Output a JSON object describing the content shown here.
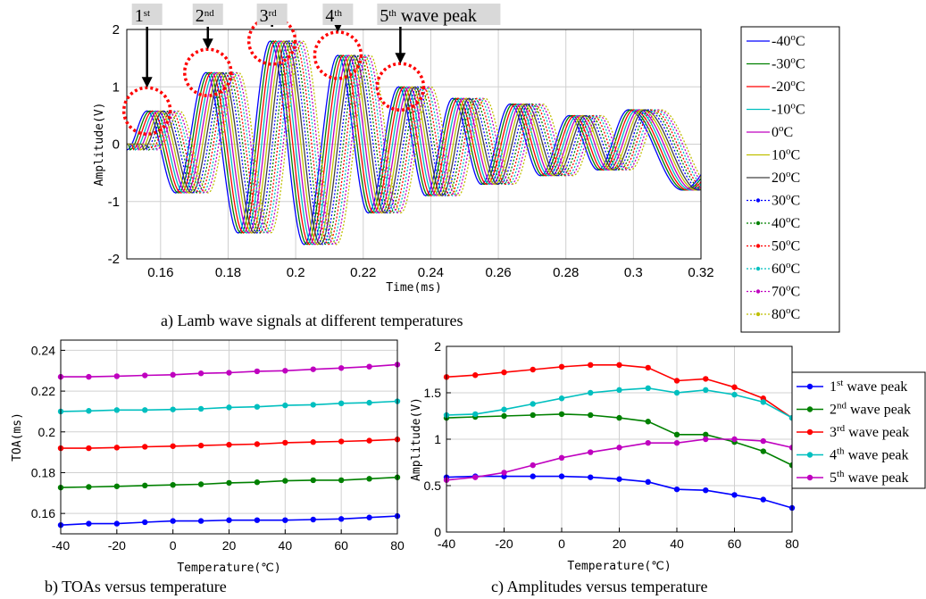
{
  "chart_data": [
    {
      "id": "a",
      "type": "line",
      "caption": "a) Lamb wave signals at different temperatures",
      "xlabel": "Time(ms)",
      "ylabel": "Amplitude(V)",
      "xlim": [
        0.15,
        0.32
      ],
      "ylim": [
        -2,
        2
      ],
      "xticks": [
        "0.16",
        "0.18",
        "0.2",
        "0.22",
        "0.24",
        "0.26",
        "0.28",
        "0.3",
        "0.32"
      ],
      "yticks": [
        "-2",
        "-1",
        "0",
        "1",
        "2"
      ],
      "grid": true,
      "legend_position": "right",
      "series": [
        {
          "name": "-40",
          "color": "#0000ff",
          "dash": false
        },
        {
          "name": "-30",
          "color": "#008000",
          "dash": false
        },
        {
          "name": "-20",
          "color": "#ff0000",
          "dash": false
        },
        {
          "name": "-10",
          "color": "#00bfbf",
          "dash": false
        },
        {
          "name": "0",
          "color": "#bf00bf",
          "dash": false
        },
        {
          "name": "10",
          "color": "#bfbf00",
          "dash": false
        },
        {
          "name": "20",
          "color": "#404040",
          "dash": false
        },
        {
          "name": "30",
          "color": "#0000ff",
          "dash": true
        },
        {
          "name": "40",
          "color": "#008000",
          "dash": true
        },
        {
          "name": "50",
          "color": "#ff0000",
          "dash": true
        },
        {
          "name": "60",
          "color": "#00bfbf",
          "dash": true
        },
        {
          "name": "70",
          "color": "#bf00bf",
          "dash": true
        },
        {
          "name": "80",
          "color": "#bfbf00",
          "dash": true
        }
      ],
      "legend_unit_sup": "o",
      "legend_unit_suffix": "C",
      "envelope": {
        "peak_times": [
          0.156,
          0.1735,
          0.1925,
          0.2125,
          0.2305,
          0.2465,
          0.2635,
          0.281,
          0.2985
        ],
        "peak_values": [
          0.58,
          1.25,
          1.8,
          1.55,
          1.0,
          0.8,
          0.7,
          0.5,
          0.6
        ],
        "trough_times": [
          0.1645,
          0.183,
          0.2025,
          0.2215,
          0.2385,
          0.255,
          0.2725,
          0.2895,
          0.3145
        ],
        "trough_values": [
          -0.85,
          -1.55,
          -1.75,
          -1.2,
          -0.9,
          -0.7,
          -0.55,
          -0.45,
          -0.8
        ],
        "time_shift_per_10C": 0.0008
      },
      "peak_annotations": [
        {
          "label": "1",
          "sup": "st",
          "suffix": "",
          "x": 0.156,
          "y": 0.58
        },
        {
          "label": "2",
          "sup": "nd",
          "suffix": "",
          "x": 0.174,
          "y": 1.25
        },
        {
          "label": "3",
          "sup": "rd",
          "suffix": "",
          "x": 0.193,
          "y": 1.8
        },
        {
          "label": "4",
          "sup": "th",
          "suffix": "",
          "x": 0.2125,
          "y": 1.55
        },
        {
          "label": "5",
          "sup": "th",
          "suffix": " wave peak",
          "x": 0.231,
          "y": 1.0
        }
      ]
    },
    {
      "id": "b",
      "type": "line",
      "caption": "b) TOAs versus temperature",
      "xlabel": "Temperature(℃)",
      "ylabel": "TOA(ms)",
      "xlim": [
        -40,
        80
      ],
      "ylim": [
        0.15,
        0.245
      ],
      "xticks": [
        -40,
        -20,
        0,
        20,
        40,
        60,
        80
      ],
      "yticks": [
        0.16,
        0.18,
        0.2,
        0.22,
        0.24
      ],
      "ytick_labels": [
        "0.16",
        "0.18",
        "0.2",
        "0.22",
        "0.24"
      ],
      "x": [
        -40,
        -30,
        -20,
        -10,
        0,
        10,
        20,
        30,
        40,
        50,
        60,
        70,
        80
      ],
      "series": [
        {
          "name": "1st wave peak",
          "color": "#0000ff",
          "values": [
            0.1543,
            0.155,
            0.155,
            0.1557,
            0.1563,
            0.1563,
            0.1567,
            0.1567,
            0.1567,
            0.157,
            0.1573,
            0.158,
            0.1587
          ]
        },
        {
          "name": "2nd wave peak",
          "color": "#008000",
          "values": [
            0.1727,
            0.173,
            0.1733,
            0.1737,
            0.174,
            0.1743,
            0.175,
            0.1753,
            0.176,
            0.1763,
            0.1763,
            0.177,
            0.1777
          ]
        },
        {
          "name": "3rd wave peak",
          "color": "#ff0000",
          "values": [
            0.192,
            0.192,
            0.1923,
            0.1927,
            0.193,
            0.1933,
            0.1937,
            0.194,
            0.1947,
            0.195,
            0.1953,
            0.1957,
            0.1963
          ]
        },
        {
          "name": "4th wave peak",
          "color": "#00bfbf",
          "values": [
            0.21,
            0.2103,
            0.2107,
            0.2107,
            0.211,
            0.2113,
            0.212,
            0.2123,
            0.213,
            0.2133,
            0.214,
            0.2143,
            0.215
          ]
        },
        {
          "name": "5th wave peak",
          "color": "#bf00bf",
          "values": [
            0.227,
            0.227,
            0.2273,
            0.2277,
            0.228,
            0.2287,
            0.229,
            0.2297,
            0.23,
            0.2307,
            0.2313,
            0.232,
            0.233
          ]
        }
      ]
    },
    {
      "id": "c",
      "type": "line",
      "caption": "c) Amplitudes versus temperature",
      "xlabel": "Temperature(℃)",
      "ylabel": "Amplitude(V)",
      "xlim": [
        -40,
        80
      ],
      "ylim": [
        0,
        2
      ],
      "xticks": [
        -40,
        -20,
        0,
        20,
        40,
        60,
        80
      ],
      "yticks": [
        0,
        0.5,
        1,
        1.5,
        2
      ],
      "ytick_labels": [
        "0",
        "0.5",
        "1",
        "1.5",
        "2"
      ],
      "legend_position": "right",
      "x": [
        -40,
        -30,
        -20,
        -10,
        0,
        10,
        20,
        30,
        40,
        50,
        60,
        70,
        80
      ],
      "series": [
        {
          "name": "1st wave peak",
          "ord": "1",
          "sup": "st",
          "color": "#0000ff",
          "values": [
            0.59,
            0.6,
            0.6,
            0.6,
            0.6,
            0.59,
            0.57,
            0.54,
            0.46,
            0.45,
            0.4,
            0.35,
            0.26
          ]
        },
        {
          "name": "2nd wave peak",
          "ord": "2",
          "sup": "nd",
          "color": "#008000",
          "values": [
            1.23,
            1.24,
            1.25,
            1.26,
            1.27,
            1.26,
            1.23,
            1.19,
            1.05,
            1.05,
            0.97,
            0.87,
            0.72
          ]
        },
        {
          "name": "3rd wave peak",
          "ord": "3",
          "sup": "rd",
          "color": "#ff0000",
          "values": [
            1.67,
            1.69,
            1.72,
            1.75,
            1.78,
            1.8,
            1.8,
            1.77,
            1.63,
            1.65,
            1.56,
            1.44,
            1.23
          ]
        },
        {
          "name": "4th wave peak",
          "ord": "4",
          "sup": "th",
          "color": "#00bfbf",
          "values": [
            1.26,
            1.27,
            1.32,
            1.38,
            1.44,
            1.5,
            1.53,
            1.55,
            1.5,
            1.53,
            1.48,
            1.4,
            1.23
          ]
        },
        {
          "name": "5th wave peak",
          "ord": "5",
          "sup": "th",
          "color": "#bf00bf",
          "values": [
            0.56,
            0.59,
            0.64,
            0.72,
            0.8,
            0.86,
            0.91,
            0.96,
            0.96,
            1.0,
            1.0,
            0.98,
            0.91
          ]
        }
      ],
      "legend_suffix": " wave peak"
    }
  ]
}
